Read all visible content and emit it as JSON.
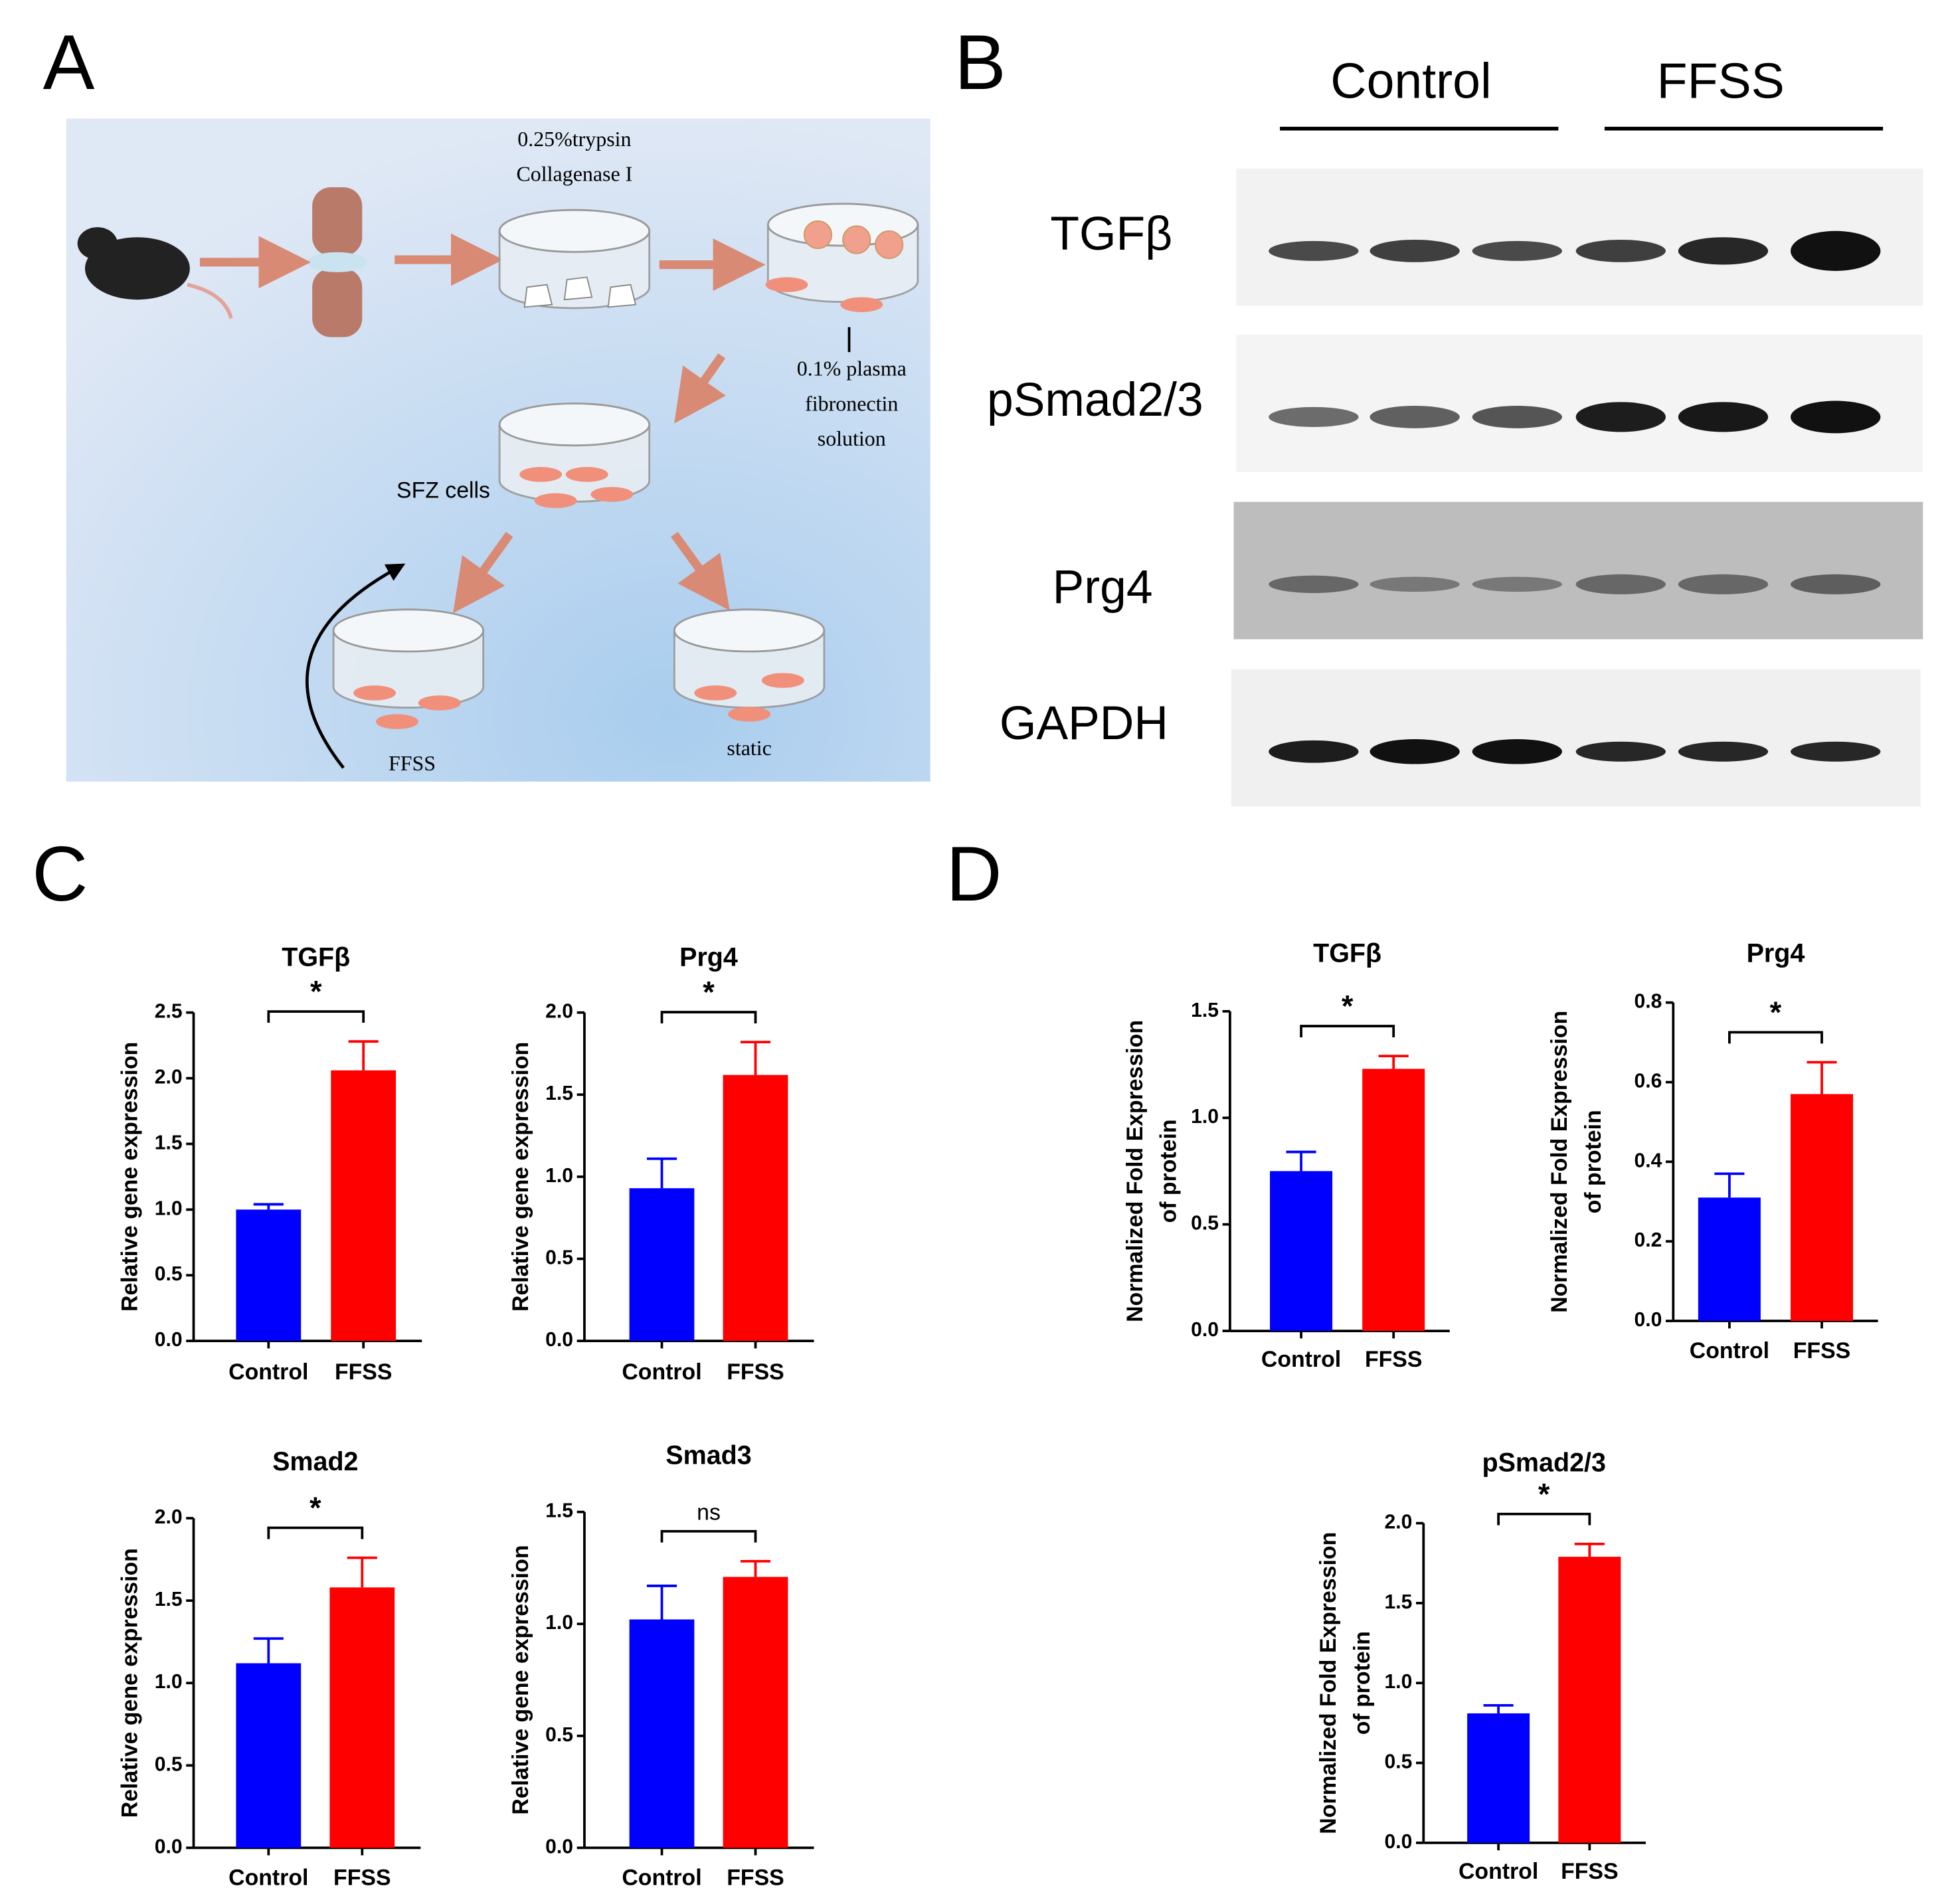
{
  "panel_labels": [
    "A",
    "B",
    "C",
    "D"
  ],
  "diagram": {
    "labels": [
      "0.25%trypsin",
      "Collagenase I",
      "0.1% plasma",
      "fibronectin",
      "solution",
      "SFZ cells",
      "FFSS",
      "static"
    ]
  },
  "blot": {
    "groups": [
      "Control",
      "FFSS"
    ],
    "proteins": [
      "TGFβ",
      "pSmad2/3",
      "Prg4",
      "GAPDH"
    ]
  },
  "chart_data": [
    {
      "type": "bar",
      "title": "TGFβ",
      "ylabel": [
        "Relative gene expression"
      ],
      "categories": [
        "Control",
        "FFSS"
      ],
      "values": [
        1.0,
        2.06
      ],
      "errors": [
        0.04,
        0.22
      ],
      "colors": [
        "#0000ff",
        "#ff0000"
      ],
      "ylim": [
        0,
        2.5
      ],
      "yticks": [
        {
          "value": 0,
          "label": "0.0"
        },
        {
          "value": 0.5,
          "label": "0.5"
        },
        {
          "value": 1,
          "label": "1.0"
        },
        {
          "value": 1.5,
          "label": "1.5"
        },
        {
          "value": 2,
          "label": "2.0"
        },
        {
          "value": 2.5,
          "label": "2.5"
        }
      ],
      "annotation": "*"
    },
    {
      "type": "bar",
      "title": "Prg4",
      "ylabel": [
        "Relative gene expression"
      ],
      "categories": [
        "Control",
        "FFSS"
      ],
      "values": [
        0.93,
        1.62
      ],
      "errors": [
        0.18,
        0.2
      ],
      "colors": [
        "#0000ff",
        "#ff0000"
      ],
      "ylim": [
        0,
        2.0
      ],
      "yticks": [
        {
          "value": 0,
          "label": "0.0"
        },
        {
          "value": 0.5,
          "label": "0.5"
        },
        {
          "value": 1,
          "label": "1.0"
        },
        {
          "value": 1.5,
          "label": "1.5"
        },
        {
          "value": 2,
          "label": "2.0"
        }
      ],
      "annotation": "*"
    },
    {
      "type": "bar",
      "title": "Smad2",
      "ylabel": [
        "Relative gene expression"
      ],
      "categories": [
        "Control",
        "FFSS"
      ],
      "values": [
        1.12,
        1.58
      ],
      "errors": [
        0.15,
        0.18
      ],
      "colors": [
        "#0000ff",
        "#ff0000"
      ],
      "ylim": [
        0,
        2.0
      ],
      "yticks": [
        {
          "value": 0,
          "label": "0.0"
        },
        {
          "value": 0.5,
          "label": "0.5"
        },
        {
          "value": 1,
          "label": "1.0"
        },
        {
          "value": 1.5,
          "label": "1.5"
        },
        {
          "value": 2,
          "label": "2.0"
        }
      ],
      "annotation": "*"
    },
    {
      "type": "bar",
      "title": "Smad3",
      "ylabel": [
        "Relative gene expression"
      ],
      "categories": [
        "Control",
        "FFSS"
      ],
      "values": [
        1.02,
        1.21
      ],
      "errors": [
        0.15,
        0.07
      ],
      "colors": [
        "#0000ff",
        "#ff0000"
      ],
      "ylim": [
        0,
        1.5
      ],
      "yticks": [
        {
          "value": 0,
          "label": "0.0"
        },
        {
          "value": 0.5,
          "label": "0.5"
        },
        {
          "value": 1,
          "label": "1.0"
        },
        {
          "value": 1.5,
          "label": "1.5"
        }
      ],
      "annotation": "ns"
    },
    {
      "type": "bar",
      "title": "TGFβ",
      "ylabel": [
        "Normalized Fold Expression",
        "of  protein"
      ],
      "categories": [
        "Control",
        "FFSS"
      ],
      "values": [
        0.75,
        1.23
      ],
      "errors": [
        0.09,
        0.06
      ],
      "colors": [
        "#0000ff",
        "#ff0000"
      ],
      "ylim": [
        0,
        1.5
      ],
      "yticks": [
        {
          "value": 0,
          "label": "0.0"
        },
        {
          "value": 0.5,
          "label": "0.5"
        },
        {
          "value": 1,
          "label": "1.0"
        },
        {
          "value": 1.5,
          "label": "1.5"
        }
      ],
      "annotation": "*"
    },
    {
      "type": "bar",
      "title": "Prg4",
      "ylabel": [
        "Normalized Fold Expression",
        "of  protein"
      ],
      "categories": [
        "Control",
        "FFSS"
      ],
      "values": [
        0.31,
        0.57
      ],
      "errors": [
        0.06,
        0.08
      ],
      "colors": [
        "#0000ff",
        "#ff0000"
      ],
      "ylim": [
        0,
        0.8
      ],
      "yticks": [
        {
          "value": 0,
          "label": "0.0"
        },
        {
          "value": 0.2,
          "label": "0.2"
        },
        {
          "value": 0.4,
          "label": "0.4"
        },
        {
          "value": 0.6,
          "label": "0.6"
        },
        {
          "value": 0.8,
          "label": "0.8"
        }
      ],
      "annotation": "*"
    },
    {
      "type": "bar",
      "title": "pSmad2/3",
      "ylabel": [
        "Normalized Fold Expression",
        "of  protein"
      ],
      "categories": [
        "Control",
        "FFSS"
      ],
      "values": [
        0.81,
        1.79
      ],
      "errors": [
        0.05,
        0.08
      ],
      "colors": [
        "#0000ff",
        "#ff0000"
      ],
      "ylim": [
        0,
        2.0
      ],
      "yticks": [
        {
          "value": 0,
          "label": "0.0"
        },
        {
          "value": 0.5,
          "label": "0.5"
        },
        {
          "value": 1,
          "label": "1.0"
        },
        {
          "value": 1.5,
          "label": "1.5"
        },
        {
          "value": 2,
          "label": "2.0"
        }
      ],
      "annotation": "*"
    }
  ]
}
